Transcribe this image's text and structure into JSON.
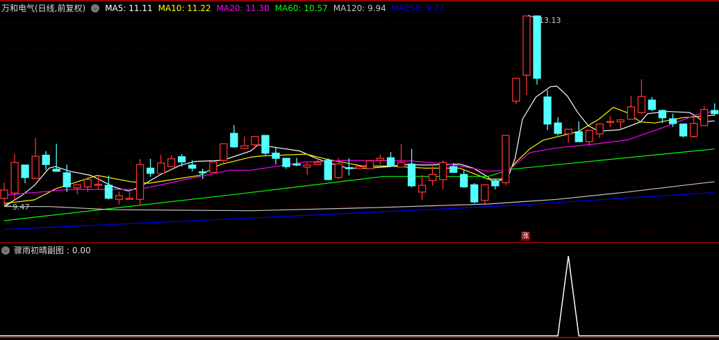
{
  "header": {
    "title": "万和电气(日线,前复权)",
    "ma_labels": [
      {
        "text": "MA5: 11.11",
        "color": "#ffffff"
      },
      {
        "text": "MA10: 11.22",
        "color": "#ffff00"
      },
      {
        "text": "MA20: 11.30",
        "color": "#ff00ff"
      },
      {
        "text": "MA60: 10.57",
        "color": "#00ff00"
      },
      {
        "text": "MA120: 9.94",
        "color": "#c8c8c8"
      },
      {
        "text": "MA250: 9.73",
        "color": "#0000ff"
      }
    ]
  },
  "sub_pane": {
    "label": "骤雨初晴副图",
    "value_text": ": 0.00"
  },
  "badge": "涨",
  "chart_data": {
    "type": "candlestick",
    "price_range": [
      9.47,
      13.13
    ],
    "max_label": "13.13",
    "min_label": "9.47",
    "colors": {
      "up": "#ff3232",
      "down": "#54ffff",
      "background": "#000000",
      "grid": "#8b0000"
    },
    "grid": true,
    "candles_ohlc": [
      [
        9.62,
        9.92,
        9.47,
        9.78
      ],
      [
        9.72,
        10.47,
        9.59,
        10.31
      ],
      [
        10.26,
        10.26,
        9.91,
        10.02
      ],
      [
        10.0,
        10.78,
        10.0,
        10.43
      ],
      [
        10.45,
        10.53,
        10.16,
        10.27
      ],
      [
        10.18,
        10.67,
        10.14,
        10.14
      ],
      [
        10.11,
        10.27,
        9.74,
        9.84
      ],
      [
        9.82,
        9.88,
        9.7,
        9.88
      ],
      [
        9.84,
        10.03,
        9.74,
        9.98
      ],
      [
        9.87,
        10.06,
        9.8,
        9.89
      ],
      [
        9.87,
        10.06,
        9.6,
        9.62
      ],
      [
        9.6,
        9.75,
        9.5,
        9.67
      ],
      [
        9.61,
        9.74,
        9.6,
        9.62
      ],
      [
        9.6,
        10.38,
        9.48,
        10.27
      ],
      [
        10.2,
        10.38,
        10.03,
        10.1
      ],
      [
        10.1,
        10.46,
        10.1,
        10.3
      ],
      [
        10.23,
        10.45,
        10.23,
        10.38
      ],
      [
        10.42,
        10.47,
        10.23,
        10.32
      ],
      [
        10.26,
        10.35,
        10.14,
        10.2
      ],
      [
        10.13,
        10.19,
        9.99,
        10.12
      ],
      [
        10.12,
        10.35,
        10.12,
        10.32
      ],
      [
        10.35,
        10.67,
        10.27,
        10.67
      ],
      [
        10.87,
        11.03,
        10.59,
        10.61
      ],
      [
        10.58,
        10.81,
        10.58,
        10.63
      ],
      [
        10.65,
        10.81,
        10.57,
        10.81
      ],
      [
        10.83,
        10.83,
        10.45,
        10.49
      ],
      [
        10.49,
        10.61,
        10.27,
        10.39
      ],
      [
        10.39,
        10.39,
        10.19,
        10.23
      ],
      [
        10.28,
        10.4,
        10.24,
        10.26
      ],
      [
        10.22,
        10.31,
        10.07,
        10.26
      ],
      [
        10.27,
        10.42,
        10.27,
        10.31
      ],
      [
        10.35,
        10.39,
        9.98,
        9.98
      ],
      [
        10.02,
        10.39,
        9.99,
        10.28
      ],
      [
        10.21,
        10.39,
        10.06,
        10.2
      ],
      [
        10.19,
        10.23,
        10.19,
        10.23
      ],
      [
        10.19,
        10.36,
        10.19,
        10.34
      ],
      [
        10.35,
        10.46,
        10.27,
        10.39
      ],
      [
        10.4,
        10.51,
        10.24,
        10.24
      ],
      [
        10.22,
        10.66,
        10.22,
        10.31
      ],
      [
        10.28,
        10.57,
        9.83,
        9.86
      ],
      [
        9.74,
        10.07,
        9.59,
        9.87
      ],
      [
        9.96,
        10.24,
        9.86,
        10.08
      ],
      [
        9.98,
        10.35,
        9.79,
        10.31
      ],
      [
        10.23,
        10.3,
        10.12,
        10.12
      ],
      [
        10.08,
        10.18,
        9.82,
        9.84
      ],
      [
        9.88,
        9.91,
        9.52,
        9.55
      ],
      [
        9.58,
        9.88,
        9.51,
        9.88
      ],
      [
        9.96,
        9.99,
        9.79,
        9.86
      ],
      [
        9.92,
        10.83,
        9.87,
        10.83
      ],
      [
        11.49,
        11.93,
        11.43,
        11.93
      ],
      [
        11.99,
        13.13,
        11.61,
        13.13
      ],
      [
        13.13,
        13.13,
        11.81,
        11.93
      ],
      [
        11.57,
        11.7,
        10.93,
        11.05
      ],
      [
        11.07,
        11.18,
        10.83,
        10.87
      ],
      [
        10.86,
        10.95,
        10.69,
        10.95
      ],
      [
        10.9,
        11.1,
        10.71,
        10.71
      ],
      [
        10.71,
        10.93,
        10.63,
        10.93
      ],
      [
        10.86,
        11.06,
        10.78,
        11.05
      ],
      [
        11.09,
        11.21,
        10.99,
        11.1
      ],
      [
        11.09,
        11.14,
        10.97,
        11.13
      ],
      [
        11.14,
        11.59,
        11.14,
        11.38
      ],
      [
        11.27,
        11.91,
        11.25,
        11.58
      ],
      [
        11.51,
        11.57,
        11.3,
        11.33
      ],
      [
        11.31,
        11.33,
        11.07,
        11.17
      ],
      [
        11.15,
        11.25,
        10.99,
        11.06
      ],
      [
        11.05,
        11.05,
        10.79,
        10.82
      ],
      [
        10.81,
        11.22,
        10.79,
        11.06
      ],
      [
        11.02,
        11.39,
        11.02,
        11.33
      ],
      [
        11.31,
        11.45,
        11.21,
        11.25
      ]
    ],
    "moving_averages": [
      {
        "name": "MA5",
        "color": "#ffffff",
        "points": [
          [
            0,
            9.47
          ],
          [
            1.6,
            9.66
          ],
          [
            2.9,
            9.87
          ],
          [
            4.3,
            10.2
          ],
          [
            4.9,
            10.23
          ],
          [
            6.3,
            10.14
          ],
          [
            8.3,
            10.06
          ],
          [
            10.6,
            9.83
          ],
          [
            11.9,
            9.76
          ],
          [
            12.9,
            9.83
          ],
          [
            14.9,
            10.07
          ],
          [
            16.9,
            10.26
          ],
          [
            18.3,
            10.33
          ],
          [
            20.9,
            10.35
          ],
          [
            23.6,
            10.53
          ],
          [
            24.3,
            10.65
          ],
          [
            26.3,
            10.59
          ],
          [
            28.3,
            10.53
          ],
          [
            29.6,
            10.41
          ],
          [
            30.9,
            10.31
          ],
          [
            32.9,
            10.2
          ],
          [
            34.9,
            10.2
          ],
          [
            36.9,
            10.23
          ],
          [
            38.3,
            10.27
          ],
          [
            40.3,
            10.26
          ],
          [
            42.3,
            10.27
          ],
          [
            43.6,
            10.28
          ],
          [
            44.9,
            10.2
          ],
          [
            46.3,
            10.03
          ],
          [
            46.9,
            9.9
          ],
          [
            48.3,
            10.06
          ],
          [
            48.9,
            10.39
          ],
          [
            49.6,
            11.14
          ],
          [
            50.9,
            11.57
          ],
          [
            52.3,
            11.77
          ],
          [
            52.9,
            11.78
          ],
          [
            53.9,
            11.59
          ],
          [
            54.9,
            11.27
          ],
          [
            55.9,
            11.02
          ],
          [
            56.9,
            10.91
          ],
          [
            58.9,
            10.94
          ],
          [
            59.6,
            10.99
          ],
          [
            60.9,
            11.09
          ],
          [
            61.6,
            11.25
          ],
          [
            63.6,
            11.29
          ],
          [
            65.6,
            11.27
          ],
          [
            66.3,
            11.19
          ],
          [
            66.9,
            11.09
          ],
          [
            68,
            11.11
          ]
        ]
      },
      {
        "name": "MA10",
        "color": "#ffff00",
        "points": [
          [
            0,
            9.52
          ],
          [
            2.9,
            9.59
          ],
          [
            4.9,
            9.8
          ],
          [
            8.9,
            10.06
          ],
          [
            12.1,
            9.94
          ],
          [
            13.8,
            9.91
          ],
          [
            18.7,
            10.06
          ],
          [
            20.7,
            10.27
          ],
          [
            23.6,
            10.41
          ],
          [
            24.3,
            10.43
          ],
          [
            28.9,
            10.47
          ],
          [
            30.9,
            10.37
          ],
          [
            34.3,
            10.24
          ],
          [
            36.9,
            10.24
          ],
          [
            40.3,
            10.2
          ],
          [
            43.6,
            10.2
          ],
          [
            46.3,
            9.99
          ],
          [
            47.6,
            9.99
          ],
          [
            48.9,
            10.3
          ],
          [
            50.3,
            10.57
          ],
          [
            51.6,
            10.74
          ],
          [
            54.9,
            10.9
          ],
          [
            56.9,
            11.14
          ],
          [
            58.3,
            11.37
          ],
          [
            59.6,
            11.27
          ],
          [
            60.9,
            11.09
          ],
          [
            62.3,
            11.07
          ],
          [
            64.9,
            11.17
          ],
          [
            68,
            11.22
          ]
        ]
      },
      {
        "name": "MA20",
        "color": "#ff00ff",
        "points": [
          [
            0,
            9.68
          ],
          [
            6.3,
            9.79
          ],
          [
            12.9,
            9.79
          ],
          [
            21.6,
            10.16
          ],
          [
            23.6,
            10.16
          ],
          [
            28.9,
            10.32
          ],
          [
            32.9,
            10.35
          ],
          [
            38.9,
            10.34
          ],
          [
            42.9,
            10.27
          ],
          [
            46.3,
            10.14
          ],
          [
            48.3,
            10.16
          ],
          [
            50.3,
            10.5
          ],
          [
            52.9,
            10.59
          ],
          [
            56.3,
            10.66
          ],
          [
            59.6,
            10.74
          ],
          [
            62.9,
            10.97
          ],
          [
            66.3,
            11.23
          ],
          [
            68,
            11.3
          ]
        ]
      },
      {
        "name": "MA60",
        "color": "#00ff00",
        "points": [
          [
            0,
            9.19
          ],
          [
            22.3,
            9.7
          ],
          [
            36.3,
            10.04
          ],
          [
            46.3,
            10.04
          ],
          [
            48.6,
            10.18
          ],
          [
            68,
            10.57
          ]
        ]
      },
      {
        "name": "MA120",
        "color": "#c8c8c8",
        "points": [
          [
            0,
            9.46
          ],
          [
            4.3,
            9.46
          ],
          [
            10.3,
            9.4
          ],
          [
            23.6,
            9.38
          ],
          [
            35.6,
            9.44
          ],
          [
            46.3,
            9.51
          ],
          [
            52.9,
            9.6
          ],
          [
            59.6,
            9.74
          ],
          [
            68,
            9.94
          ]
        ]
      },
      {
        "name": "MA250",
        "color": "#0000ff",
        "points": [
          [
            0,
            9.02
          ],
          [
            23.6,
            9.24
          ],
          [
            47.6,
            9.47
          ],
          [
            68,
            9.73
          ]
        ]
      }
    ],
    "indicator": {
      "color": "#ffffff",
      "values_nonzero": [
        [
          54,
          1
        ]
      ],
      "range": [
        0,
        1
      ]
    }
  }
}
